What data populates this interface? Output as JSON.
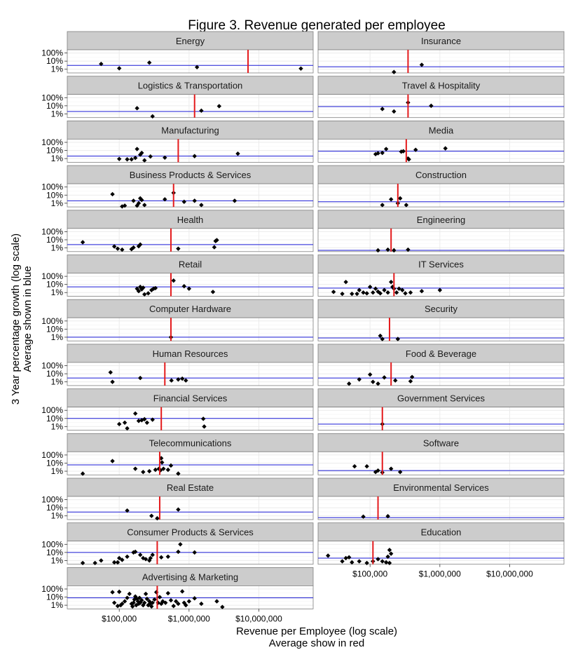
{
  "chart_data": {
    "type": "scatter",
    "title": "Figure 3. Revenue generated per employee",
    "xlabel": "Revenue per Employee (log scale)",
    "xlabel_sub": "Average show in red",
    "ylabel": "3 Year percentage growth (log scale)",
    "ylabel_sub": "Average shown in blue",
    "x_scale": "log10",
    "y_scale": "log10",
    "xlim": [
      18000,
      60000000
    ],
    "ylim_percent": [
      0.35,
      250
    ],
    "x_ticks": [
      100000,
      1000000,
      10000000
    ],
    "x_tick_labels": [
      "$100,000",
      "$1,000,000",
      "$10,000,000"
    ],
    "y_ticks": [
      1,
      10,
      100
    ],
    "y_tick_labels": [
      "1%",
      "10%",
      "100%"
    ],
    "colors": {
      "average_revenue": "#e41a1c",
      "average_growth": "#1a1ad6",
      "points": "#000000",
      "strip_bg": "#cccccc",
      "grid": "#ebebeb"
    },
    "panels": [
      {
        "name": "Energy",
        "avg_x": 7000000,
        "avg_y": 3,
        "points": [
          [
            55000,
            4.5
          ],
          [
            100000,
            1.3
          ],
          [
            270000,
            6.5
          ],
          [
            1300000,
            1.8
          ],
          [
            40000000,
            1.2
          ]
        ]
      },
      {
        "name": "Insurance",
        "avg_x": 350000,
        "avg_y": 2,
        "points": [
          [
            220000,
            0.45
          ],
          [
            550000,
            3.5
          ]
        ]
      },
      {
        "name": "Logistics & Transportation",
        "avg_x": 1200000,
        "avg_y": 2,
        "points": [
          [
            180000,
            5
          ],
          [
            300000,
            0.5
          ],
          [
            1500000,
            2.5
          ],
          [
            2700000,
            9
          ]
        ]
      },
      {
        "name": "Travel & Hospitality",
        "avg_x": 350000,
        "avg_y": 8,
        "points": [
          [
            150000,
            4
          ],
          [
            220000,
            2
          ],
          [
            350000,
            25
          ],
          [
            750000,
            10
          ]
        ]
      },
      {
        "name": "Manufacturing",
        "avg_x": 700000,
        "avg_y": 2,
        "points": [
          [
            100000,
            0.9
          ],
          [
            130000,
            0.8
          ],
          [
            150000,
            0.8
          ],
          [
            170000,
            1.2
          ],
          [
            180000,
            15
          ],
          [
            200000,
            3
          ],
          [
            210000,
            5
          ],
          [
            230000,
            0.6
          ],
          [
            280000,
            1.8
          ],
          [
            450000,
            1.3
          ],
          [
            1200000,
            2
          ],
          [
            5000000,
            4
          ]
        ]
      },
      {
        "name": "Media",
        "avg_x": 330000,
        "avg_y": 8,
        "points": [
          [
            120000,
            3.5
          ],
          [
            130000,
            4.5
          ],
          [
            150000,
            5
          ],
          [
            170000,
            15
          ],
          [
            280000,
            7
          ],
          [
            300000,
            8
          ],
          [
            350000,
            1
          ],
          [
            360000,
            0.8
          ],
          [
            450000,
            12
          ],
          [
            1200000,
            18
          ]
        ]
      },
      {
        "name": "Business Products & Services",
        "avg_x": 600000,
        "avg_y": 2,
        "points": [
          [
            80000,
            13
          ],
          [
            110000,
            0.4
          ],
          [
            120000,
            0.5
          ],
          [
            160000,
            2
          ],
          [
            180000,
            0.5
          ],
          [
            190000,
            1
          ],
          [
            200000,
            4
          ],
          [
            210000,
            2.5
          ],
          [
            230000,
            0.6
          ],
          [
            450000,
            3
          ],
          [
            600000,
            19
          ],
          [
            850000,
            1.5
          ],
          [
            1200000,
            2
          ],
          [
            1500000,
            0.6
          ],
          [
            4500000,
            2
          ]
        ]
      },
      {
        "name": "Construction",
        "avg_x": 250000,
        "avg_y": 1.5,
        "points": [
          [
            150000,
            0.6
          ],
          [
            200000,
            3
          ],
          [
            250000,
            1
          ],
          [
            270000,
            4
          ],
          [
            330000,
            0.6
          ]
        ]
      },
      {
        "name": "Health",
        "avg_x": 550000,
        "avg_y": 2.5,
        "points": [
          [
            30000,
            5
          ],
          [
            85000,
            1.5
          ],
          [
            95000,
            0.8
          ],
          [
            110000,
            0.6
          ],
          [
            150000,
            0.7
          ],
          [
            160000,
            1.1
          ],
          [
            190000,
            1.6
          ],
          [
            200000,
            2.6
          ],
          [
            700000,
            0.8
          ],
          [
            2300000,
            1.2
          ],
          [
            2400000,
            7
          ],
          [
            2500000,
            9
          ]
        ]
      },
      {
        "name": "Engineering",
        "avg_x": 200000,
        "avg_y": 0.5,
        "points": [
          [
            130000,
            0.5
          ],
          [
            180000,
            0.6
          ],
          [
            220000,
            0.5
          ],
          [
            350000,
            0.6
          ]
        ]
      },
      {
        "name": "Retail",
        "avg_x": 550000,
        "avg_y": 5,
        "points": [
          [
            180000,
            3
          ],
          [
            190000,
            1.5
          ],
          [
            200000,
            5
          ],
          [
            210000,
            2.5
          ],
          [
            220000,
            4
          ],
          [
            230000,
            0.6
          ],
          [
            260000,
            0.8
          ],
          [
            290000,
            2
          ],
          [
            310000,
            3
          ],
          [
            330000,
            3.5
          ],
          [
            600000,
            30
          ],
          [
            850000,
            6
          ],
          [
            1000000,
            3
          ],
          [
            2200000,
            1.2
          ]
        ]
      },
      {
        "name": "IT Services",
        "avg_x": 220000,
        "avg_y": 3.5,
        "points": [
          [
            30000,
            1.2
          ],
          [
            40000,
            0.7
          ],
          [
            45000,
            20
          ],
          [
            55000,
            0.7
          ],
          [
            65000,
            0.7
          ],
          [
            70000,
            2
          ],
          [
            80000,
            1
          ],
          [
            90000,
            0.8
          ],
          [
            100000,
            5
          ],
          [
            110000,
            1
          ],
          [
            120000,
            3
          ],
          [
            130000,
            1.3
          ],
          [
            140000,
            0.8
          ],
          [
            160000,
            2
          ],
          [
            180000,
            1
          ],
          [
            200000,
            20
          ],
          [
            210000,
            5
          ],
          [
            220000,
            3
          ],
          [
            240000,
            1
          ],
          [
            260000,
            3
          ],
          [
            290000,
            2
          ],
          [
            320000,
            0.8
          ],
          [
            380000,
            1
          ],
          [
            550000,
            1.5
          ],
          [
            1000000,
            2
          ]
        ]
      },
      {
        "name": "Computer Hardware",
        "avg_x": 550000,
        "avg_y": 1,
        "points": [
          [
            550000,
            1
          ]
        ]
      },
      {
        "name": "Security",
        "avg_x": 190000,
        "avg_y": 0.8,
        "points": [
          [
            140000,
            1.5
          ],
          [
            150000,
            0.6
          ],
          [
            250000,
            0.6
          ]
        ]
      },
      {
        "name": "Human Resources",
        "avg_x": 450000,
        "avg_y": 3,
        "points": [
          [
            75000,
            15
          ],
          [
            80000,
            1
          ],
          [
            200000,
            3
          ],
          [
            560000,
            1.5
          ],
          [
            700000,
            2
          ],
          [
            800000,
            2.5
          ],
          [
            900000,
            1.5
          ]
        ]
      },
      {
        "name": "Food & Beverage",
        "avg_x": 200000,
        "avg_y": 3,
        "points": [
          [
            50000,
            0.6
          ],
          [
            70000,
            2
          ],
          [
            100000,
            8
          ],
          [
            110000,
            1
          ],
          [
            130000,
            0.6
          ],
          [
            160000,
            3.5
          ],
          [
            230000,
            1.5
          ],
          [
            380000,
            1.2
          ],
          [
            400000,
            4
          ]
        ]
      },
      {
        "name": "Financial Services",
        "avg_x": 400000,
        "avg_y": 10,
        "points": [
          [
            100000,
            2
          ],
          [
            120000,
            3
          ],
          [
            130000,
            0.6
          ],
          [
            170000,
            40
          ],
          [
            190000,
            5
          ],
          [
            210000,
            6
          ],
          [
            230000,
            8
          ],
          [
            250000,
            3
          ],
          [
            300000,
            7
          ],
          [
            1600000,
            9
          ],
          [
            1650000,
            1
          ]
        ]
      },
      {
        "name": "Government Services",
        "avg_x": 150000,
        "avg_y": 2,
        "points": [
          [
            150000,
            2
          ]
        ]
      },
      {
        "name": "Telecommunications",
        "avg_x": 380000,
        "avg_y": 6,
        "points": [
          [
            30000,
            0.5
          ],
          [
            80000,
            18
          ],
          [
            170000,
            2
          ],
          [
            220000,
            0.8
          ],
          [
            270000,
            1
          ],
          [
            330000,
            1.5
          ],
          [
            370000,
            2
          ],
          [
            390000,
            1.3
          ],
          [
            400000,
            40
          ],
          [
            410000,
            12
          ],
          [
            430000,
            2
          ],
          [
            500000,
            1.5
          ],
          [
            550000,
            5
          ],
          [
            700000,
            0.5
          ]
        ]
      },
      {
        "name": "Software",
        "avg_x": 150000,
        "avg_y": 1.2,
        "points": [
          [
            60000,
            4
          ],
          [
            90000,
            4
          ],
          [
            120000,
            0.8
          ],
          [
            130000,
            1.2
          ],
          [
            150000,
            0.7
          ],
          [
            200000,
            2
          ],
          [
            270000,
            0.8
          ]
        ]
      },
      {
        "name": "Real Estate",
        "avg_x": 380000,
        "avg_y": 3,
        "points": [
          [
            130000,
            4.5
          ],
          [
            290000,
            1
          ],
          [
            350000,
            0.5
          ],
          [
            700000,
            6
          ]
        ]
      },
      {
        "name": "Environmental Services",
        "avg_x": 130000,
        "avg_y": 0.6,
        "points": [
          [
            80000,
            0.8
          ],
          [
            180000,
            0.9
          ]
        ]
      },
      {
        "name": "Consumer Products & Services",
        "avg_x": 350000,
        "avg_y": 10,
        "points": [
          [
            30000,
            0.5
          ],
          [
            45000,
            0.5
          ],
          [
            55000,
            1
          ],
          [
            85000,
            0.6
          ],
          [
            95000,
            0.6
          ],
          [
            100000,
            2
          ],
          [
            110000,
            1.2
          ],
          [
            130000,
            3
          ],
          [
            160000,
            10
          ],
          [
            170000,
            12
          ],
          [
            200000,
            5
          ],
          [
            220000,
            2
          ],
          [
            240000,
            1.5
          ],
          [
            270000,
            1
          ],
          [
            280000,
            2
          ],
          [
            300000,
            5
          ],
          [
            400000,
            2.5
          ],
          [
            500000,
            3
          ],
          [
            700000,
            12
          ],
          [
            750000,
            100
          ],
          [
            1200000,
            10
          ]
        ]
      },
      {
        "name": "Education",
        "avg_x": 110000,
        "avg_y": 2,
        "points": [
          [
            25000,
            4
          ],
          [
            40000,
            0.8
          ],
          [
            45000,
            2
          ],
          [
            50000,
            2.5
          ],
          [
            55000,
            0.6
          ],
          [
            70000,
            0.8
          ],
          [
            90000,
            0.5
          ],
          [
            110000,
            0.8
          ],
          [
            130000,
            1.5
          ],
          [
            150000,
            0.8
          ],
          [
            170000,
            0.6
          ],
          [
            180000,
            3
          ],
          [
            190000,
            0.5
          ],
          [
            190000,
            20
          ],
          [
            200000,
            7
          ]
        ]
      },
      {
        "name": "Advertising & Marketing",
        "avg_x": 350000,
        "avg_y": 8,
        "points": [
          [
            80000,
            40
          ],
          [
            85000,
            2
          ],
          [
            95000,
            0.8
          ],
          [
            100000,
            45
          ],
          [
            105000,
            1
          ],
          [
            110000,
            1.5
          ],
          [
            120000,
            3
          ],
          [
            130000,
            8
          ],
          [
            140000,
            25
          ],
          [
            150000,
            1.5
          ],
          [
            155000,
            0.7
          ],
          [
            160000,
            2
          ],
          [
            165000,
            5
          ],
          [
            170000,
            12
          ],
          [
            175000,
            1
          ],
          [
            180000,
            6
          ],
          [
            185000,
            3
          ],
          [
            190000,
            1.5
          ],
          [
            195000,
            8
          ],
          [
            200000,
            2
          ],
          [
            210000,
            4
          ],
          [
            220000,
            1
          ],
          [
            230000,
            2
          ],
          [
            240000,
            25
          ],
          [
            250000,
            6
          ],
          [
            260000,
            1
          ],
          [
            270000,
            3
          ],
          [
            280000,
            1.8
          ],
          [
            290000,
            0.7
          ],
          [
            300000,
            2
          ],
          [
            320000,
            5
          ],
          [
            340000,
            40
          ],
          [
            360000,
            2
          ],
          [
            380000,
            10
          ],
          [
            400000,
            1.5
          ],
          [
            420000,
            3
          ],
          [
            460000,
            2
          ],
          [
            500000,
            30
          ],
          [
            550000,
            4
          ],
          [
            600000,
            0.8
          ],
          [
            650000,
            3
          ],
          [
            700000,
            1.5
          ],
          [
            800000,
            50
          ],
          [
            850000,
            2
          ],
          [
            900000,
            1
          ],
          [
            1000000,
            3
          ],
          [
            1200000,
            7
          ],
          [
            1500000,
            1.5
          ],
          [
            2500000,
            3
          ],
          [
            3000000,
            0.6
          ]
        ]
      }
    ]
  }
}
